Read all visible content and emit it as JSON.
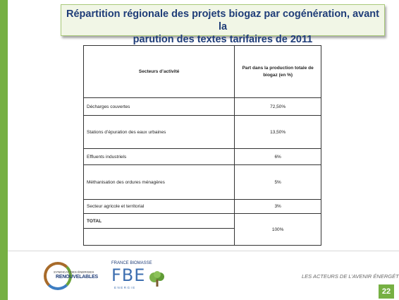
{
  "slide": {
    "title_line1": "Répartition régionale des projets biogaz par cogénération, avant la",
    "title_line2": "parution des textes tarifaires de 2011"
  },
  "table": {
    "headers": [
      "Secteurs d’activité",
      "Part dans la production totale de biogaz (en %)"
    ],
    "rows": [
      {
        "sector": "Décharges couvertes",
        "share": "72,50%"
      },
      {
        "sector": "Stations d’épuration des eaux urbaines",
        "share": "13,50%"
      },
      {
        "sector": "Effluents industriels",
        "share": "6%"
      },
      {
        "sector": "Méthanisation des ordures ménagères",
        "share": "5%"
      },
      {
        "sector": "Secteur agricole et territorial",
        "share": "3%"
      }
    ],
    "total_label": "TOTAL",
    "total_value": "100%"
  },
  "footer": {
    "logo1_line1": "SYNDICAT DES ÉNERGIES",
    "logo1_line2": "RENOUVELABLES",
    "logo2_top": "FRANCE BIOMASSE",
    "logo2_big": "FBE",
    "logo2_sub": "ENERGIE",
    "tagline": "LES ACTEURS DE L’AVENIR ÉNERGÉTIQUE",
    "page_number": "22"
  },
  "colors": {
    "accent_green": "#76b043",
    "title_blue": "#1f3d78"
  }
}
